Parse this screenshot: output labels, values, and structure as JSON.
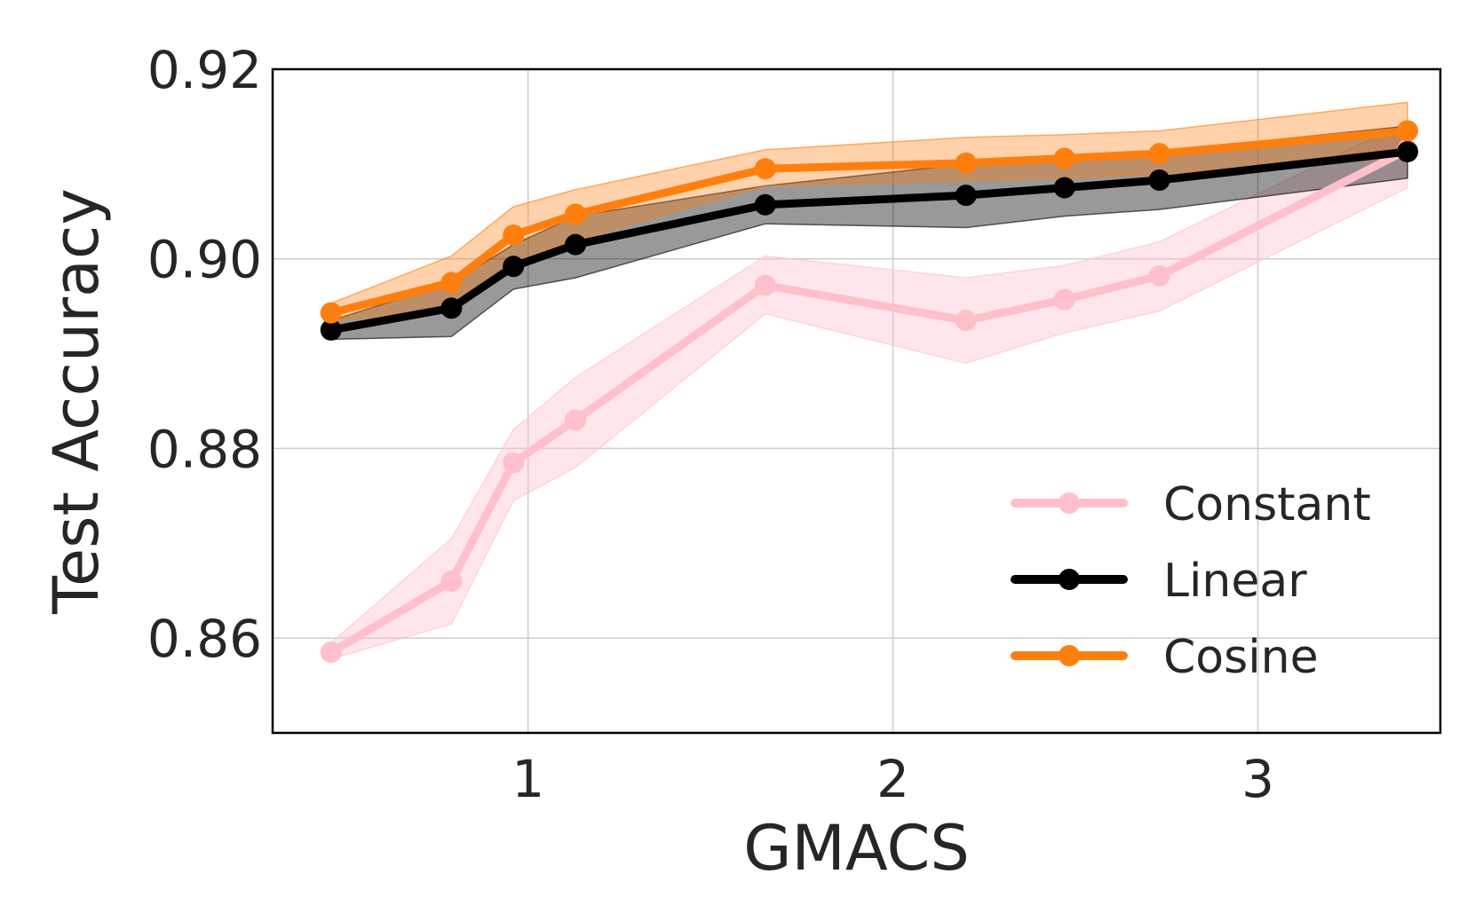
{
  "chart_data": {
    "type": "line",
    "title": "",
    "xlabel": "GMACS",
    "ylabel": "Test Accuracy",
    "xlim": [
      0.3,
      3.5
    ],
    "ylim": [
      0.85,
      0.92
    ],
    "xticks": [
      1,
      2,
      3
    ],
    "xtick_labels": [
      "1",
      "2",
      "3"
    ],
    "yticks": [
      0.86,
      0.88,
      0.9,
      0.92
    ],
    "ytick_labels": [
      "0.86",
      "0.88",
      "0.90",
      "0.92"
    ],
    "grid": true,
    "legend_position": "lower-right",
    "x": [
      0.46,
      0.79,
      0.96,
      1.13,
      1.65,
      2.2,
      2.47,
      2.73,
      3.41
    ],
    "series": [
      {
        "name": "Constant",
        "color": "#ffc0cb",
        "values": [
          0.8585,
          0.866,
          0.8785,
          0.883,
          0.8972,
          0.8935,
          0.8957,
          0.8982,
          0.9115
        ],
        "lower": [
          0.8578,
          0.8615,
          0.8745,
          0.878,
          0.8942,
          0.889,
          0.8922,
          0.8945,
          0.9075
        ],
        "upper": [
          0.8595,
          0.8705,
          0.882,
          0.8875,
          0.9003,
          0.898,
          0.8993,
          0.9018,
          0.9145
        ]
      },
      {
        "name": "Linear",
        "color": "#000000",
        "values": [
          0.8925,
          0.8948,
          0.8992,
          0.9015,
          0.9057,
          0.9067,
          0.9075,
          0.9083,
          0.9113
        ],
        "lower": [
          0.8915,
          0.8918,
          0.8968,
          0.898,
          0.9037,
          0.9033,
          0.9045,
          0.9052,
          0.9085
        ],
        "upper": [
          0.8935,
          0.8975,
          0.9015,
          0.9045,
          0.9077,
          0.91,
          0.9105,
          0.9113,
          0.914
        ]
      },
      {
        "name": "Cosine",
        "color": "#ff7f0e",
        "values": [
          0.8943,
          0.8975,
          0.9025,
          0.9047,
          0.9095,
          0.9101,
          0.9106,
          0.9111,
          0.9135
        ],
        "lower": [
          0.8935,
          0.8948,
          0.8995,
          0.902,
          0.9077,
          0.9083,
          0.9085,
          0.909,
          0.9107
        ],
        "upper": [
          0.8953,
          0.9003,
          0.9055,
          0.9073,
          0.9115,
          0.9128,
          0.9131,
          0.9135,
          0.9165
        ]
      }
    ]
  }
}
